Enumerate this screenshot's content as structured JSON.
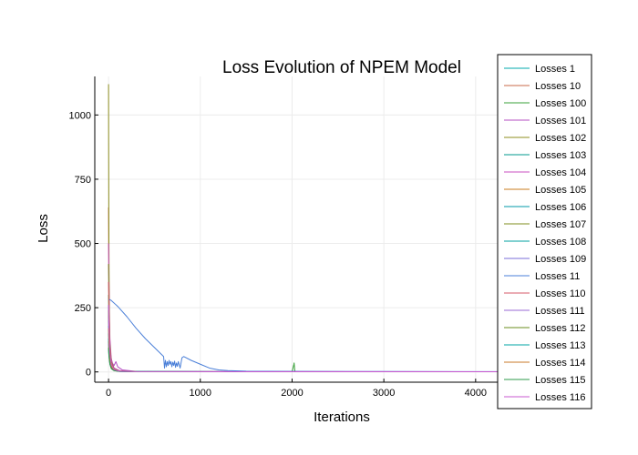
{
  "chart_data": {
    "type": "line",
    "title": "Loss Evolution of NPEM Model",
    "xlabel": "Iterations",
    "ylabel": "Loss",
    "xlim": [
      -150,
      4250
    ],
    "ylim": [
      -40,
      1150
    ],
    "x_ticks": [
      0,
      1000,
      2000,
      3000,
      4000
    ],
    "y_ticks": [
      0,
      250,
      500,
      750,
      1000
    ],
    "grid": true,
    "legend_position": "right",
    "series": [
      {
        "name": "Losses 1",
        "color": "#00a9ad",
        "x": [
          0,
          2,
          5,
          10,
          20,
          40,
          80,
          150,
          300,
          4250
        ],
        "y": [
          180,
          150,
          110,
          70,
          35,
          12,
          5,
          2,
          1,
          0.5
        ]
      },
      {
        "name": "Losses 10",
        "color": "#c86a4a",
        "x": [
          0,
          2,
          5,
          10,
          20,
          40,
          80,
          150,
          300,
          4250
        ],
        "y": [
          640,
          500,
          330,
          160,
          50,
          15,
          6,
          3,
          1,
          0.5
        ]
      },
      {
        "name": "Losses 100",
        "color": "#3aa03a",
        "x": [
          0,
          3,
          6,
          12,
          25,
          50,
          100,
          200,
          2000,
          2020,
          2022,
          2030,
          2050,
          4250
        ],
        "y": [
          300,
          220,
          150,
          80,
          30,
          10,
          4,
          2,
          1,
          30,
          35,
          3,
          1,
          0.5
        ]
      },
      {
        "name": "Losses 101",
        "color": "#b44fc3",
        "x": [
          0,
          5,
          10,
          20,
          40,
          60,
          80,
          100,
          150,
          300,
          4250
        ],
        "y": [
          220,
          170,
          120,
          70,
          35,
          25,
          40,
          20,
          8,
          2,
          0.5
        ]
      },
      {
        "name": "Losses 102",
        "color": "#8c8c1e",
        "x": [
          0,
          1,
          3,
          6,
          10,
          20,
          40,
          80,
          200,
          4250
        ],
        "y": [
          1120,
          900,
          600,
          350,
          150,
          40,
          10,
          4,
          1,
          0.5
        ]
      },
      {
        "name": "Losses 103",
        "color": "#009a8c",
        "x": [
          0,
          3,
          8,
          15,
          30,
          60,
          120,
          300,
          4250
        ],
        "y": [
          260,
          200,
          140,
          80,
          35,
          12,
          4,
          1,
          0.5
        ]
      },
      {
        "name": "Losses 104",
        "color": "#c84fc0",
        "x": [
          0,
          3,
          8,
          15,
          30,
          60,
          120,
          300,
          4250
        ],
        "y": [
          500,
          380,
          250,
          130,
          50,
          15,
          5,
          1,
          0.5
        ]
      },
      {
        "name": "Losses 105",
        "color": "#c87b1e",
        "x": [
          0,
          3,
          8,
          15,
          30,
          60,
          120,
          300,
          4250
        ],
        "y": [
          120,
          90,
          60,
          35,
          15,
          6,
          3,
          1,
          0.5
        ]
      },
      {
        "name": "Losses 106",
        "color": "#009aa8",
        "x": [
          0,
          3,
          8,
          15,
          30,
          60,
          120,
          300,
          4250
        ],
        "y": [
          90,
          70,
          50,
          30,
          14,
          6,
          2,
          1,
          0.5
        ]
      },
      {
        "name": "Losses 107",
        "color": "#7f8c1e",
        "x": [
          0,
          3,
          8,
          15,
          30,
          60,
          120,
          300,
          4250
        ],
        "y": [
          420,
          320,
          210,
          110,
          40,
          12,
          4,
          1,
          0.5
        ]
      },
      {
        "name": "Losses 108",
        "color": "#00a0a0",
        "x": [
          0,
          3,
          8,
          15,
          30,
          60,
          120,
          300,
          4250
        ],
        "y": [
          150,
          115,
          80,
          45,
          18,
          7,
          3,
          1,
          0.5
        ]
      },
      {
        "name": "Losses 109",
        "color": "#7a6ed8",
        "x": [
          0,
          3,
          8,
          15,
          30,
          60,
          120,
          300,
          4250
        ],
        "y": [
          200,
          150,
          100,
          55,
          22,
          8,
          3,
          1,
          0.5
        ]
      },
      {
        "name": "Losses 11",
        "color": "#4a7fd8",
        "x": [
          0,
          10,
          30,
          100,
          200,
          300,
          400,
          500,
          600,
          610,
          620,
          630,
          640,
          650,
          660,
          670,
          680,
          690,
          700,
          710,
          720,
          730,
          740,
          750,
          760,
          770,
          780,
          790,
          800,
          820,
          900,
          1000,
          1100,
          1200,
          1300,
          1500,
          2000,
          3000,
          4250
        ],
        "y": [
          280,
          282,
          278,
          255,
          215,
          170,
          130,
          95,
          60,
          15,
          45,
          20,
          40,
          25,
          45,
          30,
          40,
          20,
          38,
          25,
          42,
          18,
          35,
          22,
          40,
          28,
          15,
          35,
          55,
          60,
          45,
          30,
          15,
          8,
          5,
          3,
          2,
          1.5,
          1
        ]
      },
      {
        "name": "Losses 110",
        "color": "#d4586a",
        "x": [
          0,
          3,
          8,
          15,
          30,
          60,
          120,
          300,
          4250
        ],
        "y": [
          350,
          270,
          180,
          95,
          35,
          10,
          4,
          1,
          0.5
        ]
      },
      {
        "name": "Losses 111",
        "color": "#9a6ad4",
        "x": [
          0,
          3,
          8,
          15,
          30,
          60,
          120,
          300,
          4250
        ],
        "y": [
          110,
          85,
          60,
          35,
          15,
          6,
          2,
          1,
          0.5
        ]
      },
      {
        "name": "Losses 112",
        "color": "#6a8c1e",
        "x": [
          0,
          3,
          8,
          15,
          30,
          60,
          120,
          300,
          4250
        ],
        "y": [
          240,
          180,
          120,
          65,
          25,
          8,
          3,
          1,
          0.5
        ]
      },
      {
        "name": "Losses 113",
        "color": "#00a6a6",
        "x": [
          0,
          3,
          8,
          15,
          30,
          60,
          120,
          300,
          4250
        ],
        "y": [
          130,
          100,
          70,
          40,
          16,
          6,
          2,
          1,
          0.5
        ]
      },
      {
        "name": "Losses 114",
        "color": "#c8782a",
        "x": [
          0,
          3,
          8,
          15,
          30,
          60,
          120,
          300,
          4250
        ],
        "y": [
          170,
          130,
          90,
          50,
          20,
          7,
          3,
          1,
          0.5
        ]
      },
      {
        "name": "Losses 115",
        "color": "#2e9a4a",
        "x": [
          0,
          3,
          8,
          15,
          30,
          60,
          120,
          300,
          4250
        ],
        "y": [
          95,
          75,
          52,
          30,
          13,
          5,
          2,
          1,
          0.5
        ]
      },
      {
        "name": "Losses 116",
        "color": "#c85ad0",
        "x": [
          0,
          3,
          8,
          15,
          30,
          60,
          120,
          300,
          4250
        ],
        "y": [
          260,
          200,
          135,
          75,
          28,
          9,
          3,
          1,
          0.5
        ]
      }
    ]
  }
}
